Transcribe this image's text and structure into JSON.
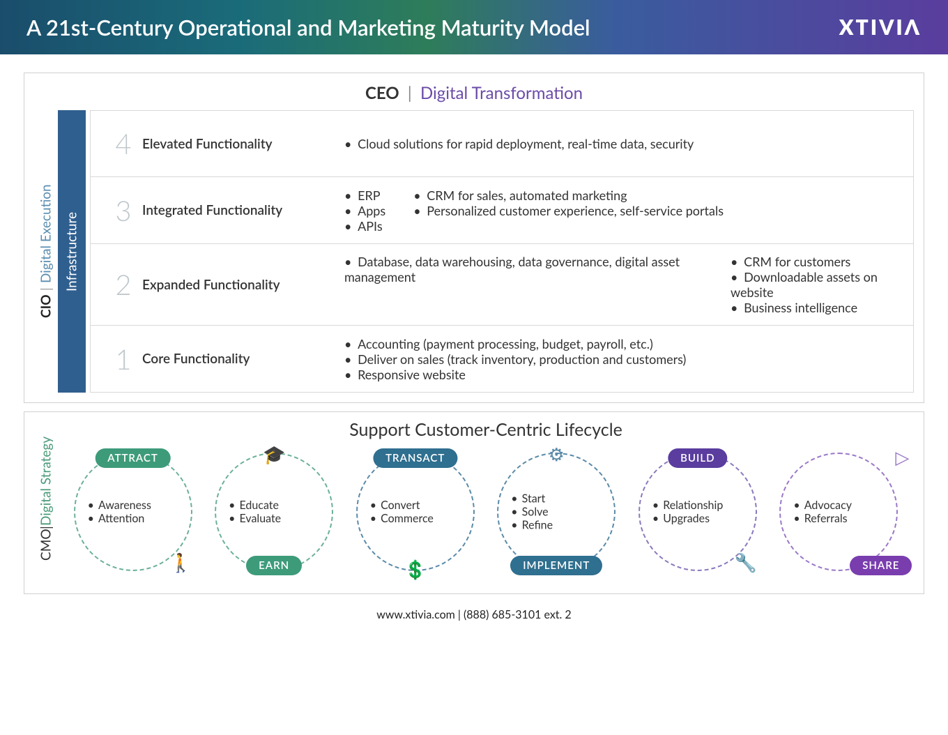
{
  "banner": {
    "title": "A 21st-Century Operational and Marketing Maturity Model",
    "brand": "XTIVIΛ",
    "gradient_from": "#1a4d6b",
    "gradient_to": "#5a3d9e"
  },
  "main": {
    "header_strong": "CEO",
    "header_sep": "|",
    "header_sub": "Digital Transformation",
    "header_sub_color": "#6b4ca8",
    "cio_strong": "CIO",
    "cio_sep": "|",
    "cio_sub": "Digital Execution",
    "cio_sub_color": "#5a8db0",
    "infra_label": "Infrastructure",
    "infra_bg": "#2f5f8f",
    "rows": [
      {
        "num": "4",
        "name": "Elevated Functionality",
        "cols": [
          [
            "Cloud solutions for rapid deployment, real-time data, security"
          ]
        ]
      },
      {
        "num": "3",
        "name": "Integrated Functionality",
        "cols": [
          [
            "ERP",
            "Apps",
            "APIs"
          ],
          [
            "CRM for sales, automated marketing",
            "Personalized customer experience, self-service portals"
          ]
        ]
      },
      {
        "num": "2",
        "name": "Expanded Functionality",
        "cols": [
          [
            "Database, data warehousing, data governance, digital asset management"
          ],
          [
            "CRM for customers",
            "Downloadable assets on website",
            "Business intelligence"
          ]
        ]
      },
      {
        "num": "1",
        "name": "Core Functionality",
        "cols": [
          [
            "Accounting (payment processing, budget, payroll, etc.)",
            "Deliver on sales (track inventory, production and customers)",
            "Responsive website"
          ]
        ]
      }
    ]
  },
  "lifecycle": {
    "cmo_strong": "CMO",
    "cmo_sep": "|",
    "cmo_sub": "Digital Strategy",
    "cmo_sub_color": "#4a9b7a",
    "title": "Support Customer-Centric Lifecycle",
    "circles": [
      {
        "badge": "ATTRACT",
        "badge_pos": "top",
        "color": "#3d9b7a",
        "border_color": "#6bb09a",
        "items": [
          "Awareness",
          "Attention"
        ],
        "icon_glyph": "🚶",
        "icon_pos": "bottom-right"
      },
      {
        "badge": "EARN",
        "badge_pos": "bot",
        "color": "#3d9b7a",
        "border_color": "#6bb09a",
        "items": [
          "Educate",
          "Evaluate"
        ],
        "icon_glyph": "🎓",
        "icon_pos": "top"
      },
      {
        "badge": "TRANSACT",
        "badge_pos": "top",
        "color": "#2f6f8f",
        "border_color": "#5a8aa8",
        "items": [
          "Convert",
          "Commerce"
        ],
        "icon_glyph": "💲",
        "icon_pos": "bottom"
      },
      {
        "badge": "IMPLEMENT",
        "badge_pos": "bot",
        "color": "#2f6f8f",
        "border_color": "#5a8aa8",
        "items": [
          "Start",
          "Solve",
          "Refine"
        ],
        "icon_glyph": "⚙",
        "icon_pos": "top"
      },
      {
        "badge": "BUILD",
        "badge_pos": "top",
        "color": "#5a3d9e",
        "border_color": "#8a78bd",
        "items": [
          "Relationship",
          "Upgrades"
        ],
        "icon_glyph": "🔧",
        "icon_pos": "bottom-right"
      },
      {
        "badge": "SHARE",
        "badge_pos": "botr",
        "color": "#7a3dae",
        "border_color": "#9a78c8",
        "items": [
          "Advocacy",
          "Referrals"
        ],
        "icon_glyph": "▷",
        "icon_pos": "top-right"
      }
    ]
  },
  "footer": {
    "text": "www.xtivia.com | (888) 685-3101 ext. 2"
  }
}
